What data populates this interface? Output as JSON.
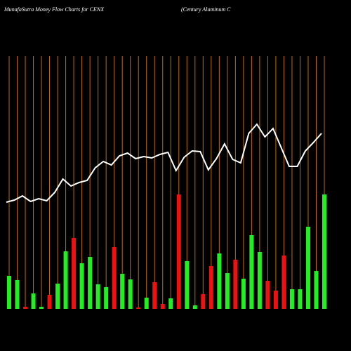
{
  "chart_data": {
    "type": "bar",
    "title": "MunafaSutra  Money Flow  Charts for CENX",
    "subtitle": "(Century Aluminum C",
    "categories": [
      null,
      null,
      null,
      null,
      null,
      null,
      null,
      null,
      null,
      null,
      null,
      null,
      null,
      null,
      null,
      null,
      null,
      null,
      null,
      null,
      null,
      null,
      null,
      null,
      null,
      null,
      null,
      null,
      null,
      null,
      null,
      null,
      null,
      null,
      null,
      null,
      null,
      null,
      null,
      null
    ],
    "values": [
      47,
      41,
      3,
      22,
      3,
      20,
      36,
      82,
      101,
      65,
      74,
      35,
      31,
      88,
      50,
      42,
      2,
      16,
      38,
      7,
      15,
      163,
      68,
      5,
      21,
      61,
      79,
      51,
      70,
      43,
      105,
      81,
      40,
      26,
      76,
      28,
      28,
      117,
      54,
      163
    ],
    "colors": [
      "#22ee22",
      "#22ee22",
      "#ee1111",
      "#22ee22",
      "#22ee22",
      "#ee1111",
      "#22ee22",
      "#22ee22",
      "#ee1111",
      "#22ee22",
      "#22ee22",
      "#22ee22",
      "#22ee22",
      "#ee1111",
      "#22ee22",
      "#22ee22",
      "#ee1111",
      "#22ee22",
      "#ee1111",
      "#ee1111",
      "#22ee22",
      "#ee1111",
      "#22ee22",
      "#22ee22",
      "#ee1111",
      "#ee1111",
      "#22ee22",
      "#22ee22",
      "#ee1111",
      "#22ee22",
      "#22ee22",
      "#22ee22",
      "#ee1111",
      "#ee1111",
      "#ee1111",
      "#22ee22",
      "#22ee22",
      "#22ee22",
      "#22ee22",
      "#22ee22"
    ],
    "line_values": [
      152,
      155,
      161,
      153,
      157,
      154,
      166,
      185,
      175,
      180,
      183,
      201,
      210,
      205,
      218,
      222,
      214,
      217,
      215,
      220,
      223,
      197,
      216,
      225,
      224,
      198,
      214,
      235,
      213,
      208,
      250,
      263,
      245,
      257,
      230,
      203,
      203,
      225,
      237,
      250
    ],
    "line_color": "#ffffff",
    "grid_color": "#c06a0c",
    "ylim": [
      0,
      360
    ]
  }
}
